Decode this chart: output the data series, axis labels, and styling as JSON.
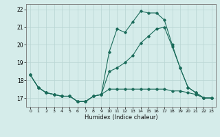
{
  "title": "",
  "xlabel": "Humidex (Indice chaleur)",
  "xlim": [
    -0.5,
    23.5
  ],
  "ylim": [
    16.5,
    22.3
  ],
  "yticks": [
    17,
    18,
    19,
    20,
    21,
    22
  ],
  "xticks": [
    0,
    1,
    2,
    3,
    4,
    5,
    6,
    7,
    8,
    9,
    10,
    11,
    12,
    13,
    14,
    15,
    16,
    17,
    18,
    19,
    20,
    21,
    22,
    23
  ],
  "background_color": "#d5ecea",
  "grid_color": "#b8d4d2",
  "line_color": "#1a6b5a",
  "lines": [
    {
      "x": [
        0,
        1,
        2,
        3,
        4,
        5,
        6,
        7,
        8,
        9,
        10,
        11,
        12,
        13,
        14,
        15,
        16,
        17,
        18,
        19,
        20,
        21,
        22,
        23
      ],
      "y": [
        18.3,
        17.6,
        17.3,
        17.2,
        17.1,
        17.1,
        16.8,
        16.8,
        17.1,
        17.2,
        19.6,
        20.9,
        20.7,
        21.3,
        21.9,
        21.8,
        21.8,
        21.4,
        20.0,
        18.7,
        17.6,
        17.3,
        17.0,
        17.0
      ]
    },
    {
      "x": [
        0,
        1,
        2,
        3,
        4,
        5,
        6,
        7,
        8,
        9,
        10,
        11,
        12,
        13,
        14,
        15,
        16,
        17,
        18,
        19,
        20,
        21,
        22,
        23
      ],
      "y": [
        18.3,
        17.6,
        17.3,
        17.2,
        17.1,
        17.1,
        16.8,
        16.8,
        17.1,
        17.2,
        18.5,
        18.7,
        19.0,
        19.4,
        20.1,
        20.5,
        20.9,
        21.0,
        19.9,
        18.7,
        17.6,
        17.3,
        17.0,
        17.0
      ]
    },
    {
      "x": [
        0,
        1,
        2,
        3,
        4,
        5,
        6,
        7,
        8,
        9,
        10,
        11,
        12,
        13,
        14,
        15,
        16,
        17,
        18,
        19,
        20,
        21,
        22,
        23
      ],
      "y": [
        18.3,
        17.6,
        17.3,
        17.2,
        17.1,
        17.1,
        16.8,
        16.8,
        17.1,
        17.2,
        17.5,
        17.5,
        17.5,
        17.5,
        17.5,
        17.5,
        17.5,
        17.5,
        17.4,
        17.4,
        17.3,
        17.2,
        17.0,
        17.0
      ]
    }
  ]
}
